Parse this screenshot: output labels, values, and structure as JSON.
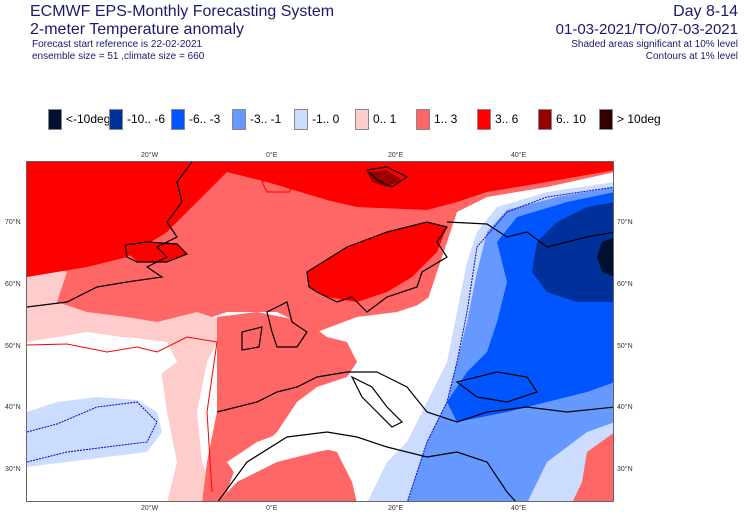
{
  "header": {
    "title": "ECMWF EPS-Monthly Forecasting System",
    "subtitle": "2-meter Temperature anomaly",
    "forecast_ref": "Forecast start reference is 22-02-2021",
    "ensemble": "ensemble size = 51  ,climate size = 660"
  },
  "right_header": {
    "period": "Day 8-14",
    "dates": "01-03-2021/TO/07-03-2021",
    "shaded_note": "Shaded areas significant at 10% level",
    "contour_note": "Contours at 1% level"
  },
  "legend": [
    {
      "label": "<-10deg",
      "color": "#001030"
    },
    {
      "label": "-10.. -6",
      "color": "#00309a"
    },
    {
      "label": "-6.. -3",
      "color": "#0055ff"
    },
    {
      "label": "-3.. -1",
      "color": "#6699ff"
    },
    {
      "label": "-1..  0",
      "color": "#ccdcff"
    },
    {
      "label": "0..  1",
      "color": "#ffcccc"
    },
    {
      "label": "1..  3",
      "color": "#ff6666"
    },
    {
      "label": "3..  6",
      "color": "#ff0000"
    },
    {
      "label": "6.. 10",
      "color": "#990000"
    },
    {
      "label": ">  10deg",
      "color": "#330000"
    }
  ],
  "axes": {
    "lon_top": [
      "20°W",
      "0°E",
      "20°E",
      "40°E"
    ],
    "lon_bottom": [
      "20°W",
      "0°E",
      "20°E",
      "40°E"
    ],
    "lat_left": [
      "70°N",
      "60°N",
      "50°N",
      "40°N",
      "30°N"
    ],
    "lat_right": [
      "70°N",
      "60°N",
      "50°N",
      "40°N",
      "30°N"
    ]
  }
}
